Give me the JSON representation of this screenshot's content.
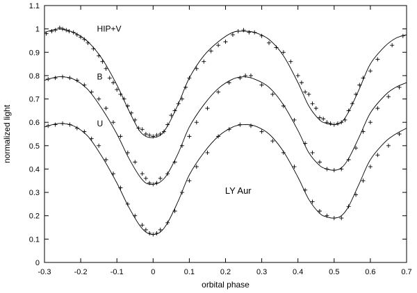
{
  "chart_data": {
    "type": "scatter",
    "title": "",
    "xlabel": "orbital phase",
    "ylabel": "normalized light",
    "xlim": [
      -0.3,
      0.7
    ],
    "ylim": [
      0,
      1.1
    ],
    "x_ticks": [
      -0.3,
      -0.2,
      -0.1,
      0,
      0.1,
      0.2,
      0.3,
      0.4,
      0.5,
      0.6,
      0.7
    ],
    "x_tick_labels": [
      "-0.3",
      "-0.2",
      "-0.1",
      "0",
      "0.1",
      "0.2",
      "0.3",
      "0.4",
      "0.5",
      "0.6",
      "0.7"
    ],
    "y_ticks": [
      0,
      0.1,
      0.2,
      0.3,
      0.4,
      0.5,
      0.6,
      0.7,
      0.8,
      0.9,
      1,
      1.1
    ],
    "y_tick_labels": [
      "0",
      "0.1",
      "0.2",
      "0.3",
      "0.4",
      "0.5",
      "0.6",
      "0.7",
      "0.8",
      "0.9",
      "1",
      "1.1"
    ],
    "grid": false,
    "legend": "none",
    "annotation": "LY Aur",
    "marker": "plus",
    "colors": {
      "line": "#000000",
      "marker": "#000000",
      "frame": "#000000"
    },
    "series": [
      {
        "name": "HIP+V",
        "model_curve": {
          "x": [
            -0.3,
            -0.26,
            -0.22,
            -0.18,
            -0.14,
            -0.1,
            -0.07,
            -0.04,
            -0.02,
            0.0,
            0.02,
            0.04,
            0.07,
            0.1,
            0.14,
            0.18,
            0.22,
            0.25,
            0.28,
            0.32,
            0.36,
            0.4,
            0.43,
            0.46,
            0.48,
            0.5,
            0.52,
            0.54,
            0.57,
            0.6,
            0.64,
            0.67,
            0.7
          ],
          "y": [
            0.985,
            1.0,
            0.985,
            0.945,
            0.87,
            0.76,
            0.66,
            0.57,
            0.54,
            0.535,
            0.545,
            0.585,
            0.68,
            0.79,
            0.885,
            0.945,
            0.985,
            0.99,
            0.985,
            0.955,
            0.885,
            0.77,
            0.67,
            0.61,
            0.595,
            0.59,
            0.6,
            0.645,
            0.745,
            0.85,
            0.925,
            0.96,
            0.975
          ]
        },
        "observations": {
          "x": [
            -0.295,
            -0.28,
            -0.27,
            -0.258,
            -0.25,
            -0.24,
            -0.232,
            -0.22,
            -0.21,
            -0.2,
            -0.19,
            -0.18,
            -0.165,
            -0.15,
            -0.14,
            -0.13,
            -0.12,
            -0.11,
            -0.1,
            -0.09,
            -0.08,
            -0.07,
            -0.06,
            -0.05,
            -0.04,
            -0.03,
            -0.02,
            -0.01,
            0.0,
            0.01,
            0.02,
            0.03,
            0.04,
            0.05,
            0.06,
            0.07,
            0.08,
            0.09,
            0.1,
            0.12,
            0.14,
            0.16,
            0.18,
            0.2,
            0.22,
            0.235,
            0.25,
            0.265,
            0.28,
            0.3,
            0.32,
            0.34,
            0.36,
            0.38,
            0.4,
            0.41,
            0.42,
            0.43,
            0.44,
            0.45,
            0.46,
            0.47,
            0.48,
            0.49,
            0.5,
            0.51,
            0.52,
            0.53,
            0.54,
            0.55,
            0.56,
            0.57,
            0.58,
            0.6,
            0.62,
            0.66,
            0.69
          ],
          "y": [
            0.98,
            0.99,
            0.995,
            1.005,
            1.0,
            0.995,
            0.99,
            0.985,
            0.975,
            0.965,
            0.955,
            0.94,
            0.915,
            0.885,
            0.86,
            0.83,
            0.79,
            0.77,
            0.74,
            0.72,
            0.7,
            0.67,
            0.64,
            0.61,
            0.575,
            0.57,
            0.55,
            0.545,
            0.54,
            0.545,
            0.55,
            0.56,
            0.59,
            0.63,
            0.65,
            0.68,
            0.7,
            0.75,
            0.79,
            0.83,
            0.86,
            0.905,
            0.93,
            0.945,
            0.975,
            0.99,
            0.995,
            0.985,
            0.985,
            0.97,
            0.94,
            0.92,
            0.9,
            0.86,
            0.8,
            0.77,
            0.73,
            0.72,
            0.68,
            0.66,
            0.62,
            0.615,
            0.6,
            0.595,
            0.59,
            0.595,
            0.6,
            0.61,
            0.65,
            0.68,
            0.72,
            0.76,
            0.79,
            0.82,
            0.87,
            0.93,
            0.97
          ]
        }
      },
      {
        "name": "B",
        "model_curve": {
          "x": [
            -0.3,
            -0.26,
            -0.22,
            -0.18,
            -0.14,
            -0.1,
            -0.07,
            -0.04,
            -0.02,
            0.0,
            0.02,
            0.04,
            0.07,
            0.1,
            0.14,
            0.18,
            0.22,
            0.25,
            0.28,
            0.32,
            0.36,
            0.4,
            0.43,
            0.46,
            0.48,
            0.5,
            0.52,
            0.54,
            0.57,
            0.6,
            0.64,
            0.67,
            0.7
          ],
          "y": [
            0.78,
            0.795,
            0.785,
            0.74,
            0.655,
            0.55,
            0.455,
            0.375,
            0.34,
            0.335,
            0.345,
            0.38,
            0.47,
            0.58,
            0.675,
            0.745,
            0.785,
            0.795,
            0.785,
            0.75,
            0.675,
            0.565,
            0.47,
            0.415,
            0.4,
            0.395,
            0.405,
            0.445,
            0.54,
            0.64,
            0.715,
            0.75,
            0.77
          ]
        },
        "observations": {
          "x": [
            -0.29,
            -0.27,
            -0.25,
            -0.23,
            -0.21,
            -0.19,
            -0.17,
            -0.15,
            -0.13,
            -0.11,
            -0.09,
            -0.07,
            -0.05,
            -0.03,
            -0.02,
            -0.01,
            0.0,
            0.01,
            0.02,
            0.04,
            0.06,
            0.08,
            0.1,
            0.12,
            0.15,
            0.18,
            0.21,
            0.24,
            0.255,
            0.27,
            0.3,
            0.33,
            0.36,
            0.39,
            0.42,
            0.44,
            0.46,
            0.48,
            0.5,
            0.52,
            0.54,
            0.56,
            0.58,
            0.6,
            0.62,
            0.65,
            0.68
          ],
          "y": [
            0.785,
            0.79,
            0.795,
            0.79,
            0.78,
            0.76,
            0.73,
            0.7,
            0.66,
            0.6,
            0.54,
            0.47,
            0.43,
            0.38,
            0.36,
            0.34,
            0.335,
            0.34,
            0.36,
            0.38,
            0.43,
            0.5,
            0.54,
            0.6,
            0.66,
            0.73,
            0.77,
            0.79,
            0.8,
            0.8,
            0.76,
            0.72,
            0.67,
            0.61,
            0.51,
            0.47,
            0.43,
            0.4,
            0.395,
            0.4,
            0.44,
            0.49,
            0.56,
            0.6,
            0.66,
            0.71,
            0.75
          ]
        }
      },
      {
        "name": "U",
        "model_curve": {
          "x": [
            -0.3,
            -0.26,
            -0.22,
            -0.18,
            -0.14,
            -0.1,
            -0.07,
            -0.04,
            -0.02,
            0.0,
            0.02,
            0.04,
            0.07,
            0.1,
            0.14,
            0.18,
            0.22,
            0.25,
            0.28,
            0.32,
            0.36,
            0.4,
            0.43,
            0.46,
            0.48,
            0.5,
            0.52,
            0.54,
            0.57,
            0.6,
            0.64,
            0.67,
            0.7
          ],
          "y": [
            0.58,
            0.595,
            0.585,
            0.54,
            0.45,
            0.34,
            0.245,
            0.165,
            0.13,
            0.12,
            0.13,
            0.17,
            0.265,
            0.375,
            0.47,
            0.54,
            0.58,
            0.59,
            0.585,
            0.55,
            0.475,
            0.365,
            0.27,
            0.21,
            0.195,
            0.19,
            0.2,
            0.24,
            0.34,
            0.44,
            0.515,
            0.55,
            0.575
          ]
        },
        "observations": {
          "x": [
            -0.29,
            -0.27,
            -0.25,
            -0.23,
            -0.21,
            -0.19,
            -0.17,
            -0.15,
            -0.13,
            -0.11,
            -0.09,
            -0.07,
            -0.05,
            -0.03,
            -0.02,
            -0.01,
            0.0,
            0.01,
            0.02,
            0.04,
            0.06,
            0.08,
            0.1,
            0.12,
            0.15,
            0.18,
            0.21,
            0.24,
            0.27,
            0.3,
            0.33,
            0.36,
            0.39,
            0.42,
            0.44,
            0.46,
            0.48,
            0.5,
            0.52,
            0.54,
            0.56,
            0.58,
            0.6,
            0.62,
            0.65,
            0.68
          ],
          "y": [
            0.585,
            0.59,
            0.595,
            0.59,
            0.575,
            0.56,
            0.53,
            0.5,
            0.44,
            0.38,
            0.32,
            0.25,
            0.2,
            0.16,
            0.14,
            0.125,
            0.12,
            0.125,
            0.14,
            0.17,
            0.22,
            0.3,
            0.35,
            0.41,
            0.47,
            0.54,
            0.57,
            0.59,
            0.585,
            0.56,
            0.52,
            0.47,
            0.41,
            0.31,
            0.26,
            0.22,
            0.2,
            0.19,
            0.19,
            0.24,
            0.29,
            0.35,
            0.41,
            0.46,
            0.5,
            0.55
          ]
        }
      }
    ]
  }
}
